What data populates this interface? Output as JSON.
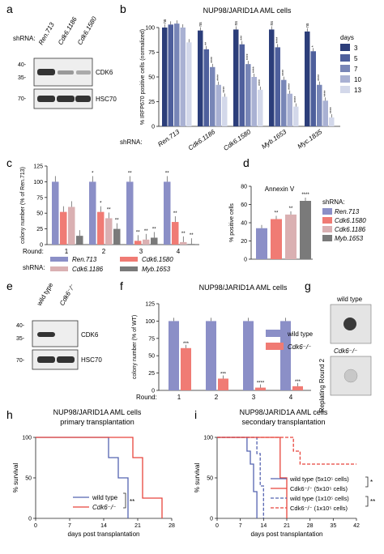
{
  "panels": {
    "a": {
      "letter": "a",
      "shrna_label": "shRNA:",
      "lanes": [
        "Ren.713",
        "Cdk6.1186",
        "Cdk6.1580"
      ],
      "mw_markers": [
        "40-",
        "35-",
        "70-"
      ],
      "bands": [
        "CDK6",
        "HSC70"
      ]
    },
    "b": {
      "letter": "b"
    },
    "c": {
      "letter": "c"
    },
    "d": {
      "letter": "d"
    },
    "e": {
      "letter": "e",
      "lanes": [
        "wild type",
        "Cdk6⁻/⁻"
      ],
      "mw_markers": [
        "40-",
        "35-",
        "70-"
      ],
      "bands": [
        "CDK6",
        "HSC70"
      ]
    },
    "f": {
      "letter": "f"
    },
    "g": {
      "letter": "g",
      "side_label": "Replating Round 2",
      "top_label": "wild type",
      "bottom_label": "Cdk6⁻/⁻"
    },
    "h": {
      "letter": "h"
    },
    "i": {
      "letter": "i"
    }
  },
  "chart_data": [
    {
      "id": "b",
      "type": "bar",
      "title": "NUP98/JARID1A AML cells",
      "ylabel": "% IRFP670 positive cells (normalized)",
      "xlabel_prefix": "shRNA:",
      "categories": [
        "Ren.713",
        "Cdk6.1186",
        "Cdk6.1580",
        "Myb.1653",
        "Myc.1835"
      ],
      "ylim": [
        0,
        100
      ],
      "yticks": [
        0,
        25,
        50,
        75,
        100
      ],
      "legend_title": "days",
      "series": [
        {
          "name": "3",
          "color": "#2c3e7a",
          "values": [
            100,
            97,
            98,
            98,
            96
          ]
        },
        {
          "name": "5",
          "color": "#4e5f9c",
          "values": [
            103,
            78,
            83,
            80,
            76
          ]
        },
        {
          "name": "7",
          "color": "#7886b7",
          "values": [
            104,
            60,
            63,
            47,
            42
          ]
        },
        {
          "name": "10",
          "color": "#a9b1d3",
          "values": [
            100,
            42,
            50,
            33,
            26
          ]
        },
        {
          "name": "13",
          "color": "#d3d8ea",
          "values": [
            85,
            30,
            37,
            20,
            9
          ]
        }
      ],
      "annotations": [
        [
          "ns",
          "ns",
          "ns",
          "ns",
          "ns"
        ],
        [
          "",
          "**",
          "***",
          "****",
          "*"
        ],
        [
          "",
          "****",
          "****",
          "****",
          "****"
        ],
        [
          "",
          "****",
          "****",
          "****",
          "****"
        ],
        [
          "",
          "****",
          "****",
          "****",
          "****"
        ]
      ]
    },
    {
      "id": "c",
      "type": "bar",
      "ylabel": "colony number (% of Ren.713)",
      "xlabel_prefix": "Round:",
      "categories": [
        "1",
        "2",
        "3",
        "4"
      ],
      "ylim": [
        0,
        125
      ],
      "yticks": [
        0,
        25,
        50,
        75,
        100,
        125
      ],
      "legend_prefix": "shRNA:",
      "series": [
        {
          "name": "Ren.713",
          "color": "#8b8fc7",
          "values": [
            100,
            100,
            100,
            100
          ]
        },
        {
          "name": "Cdk6.1580",
          "color": "#f07b74",
          "values": [
            52,
            52,
            6,
            36
          ]
        },
        {
          "name": "Cdk6.1186",
          "color": "#dab0b2",
          "values": [
            60,
            42,
            8,
            4
          ]
        },
        {
          "name": "Myb.1653",
          "color": "#7a7a7a",
          "values": [
            14,
            25,
            11,
            1
          ]
        }
      ],
      "annotations": [
        [
          "",
          "*",
          "**",
          "**"
        ],
        [
          "",
          "*",
          "**",
          "**"
        ],
        [
          "",
          "**",
          "**",
          "**"
        ],
        [
          "",
          "**",
          "**",
          "**"
        ]
      ]
    },
    {
      "id": "d",
      "type": "bar",
      "title": "Annexin V",
      "ylabel": "% positive cells",
      "ylim": [
        0,
        80
      ],
      "yticks": [
        0,
        20,
        40,
        60,
        80
      ],
      "legend_prefix": "shRNA:",
      "series": [
        {
          "name": "Ren.713",
          "color": "#8b8fc7",
          "value": 34
        },
        {
          "name": "Cdk6.1580",
          "color": "#f07b74",
          "value": 44
        },
        {
          "name": "Cdk6.1186",
          "color": "#dab0b2",
          "value": 49
        },
        {
          "name": "Myb.1653",
          "color": "#7a7a7a",
          "value": 64
        }
      ],
      "annotations": [
        "",
        "**",
        "**",
        "****"
      ]
    },
    {
      "id": "f",
      "type": "bar",
      "title": "NUP98/JARID1A AML cells",
      "ylabel": "colony number (% of WT)",
      "xlabel_prefix": "Round:",
      "categories": [
        "1",
        "2",
        "3",
        "4"
      ],
      "ylim": [
        0,
        125
      ],
      "yticks": [
        0,
        25,
        50,
        75,
        100,
        125
      ],
      "series": [
        {
          "name": "wild type",
          "color": "#8b8fc7",
          "values": [
            100,
            100,
            100,
            100
          ]
        },
        {
          "name": "Cdk6⁻/⁻",
          "color": "#f07b74",
          "values": [
            61,
            17,
            4,
            6
          ]
        }
      ],
      "annotations": [
        "***",
        "***",
        "****",
        "***"
      ]
    },
    {
      "id": "h",
      "type": "line",
      "title": "NUP98/JARID1A AML cells",
      "subtitle": "primary transplantation",
      "ylabel": "% survival",
      "xlabel": "days post transplantation",
      "xlim": [
        0,
        28
      ],
      "ylim": [
        0,
        100
      ],
      "xticks": [
        0,
        7,
        14,
        21,
        28
      ],
      "yticks": [
        0,
        50,
        100
      ],
      "significance": "**",
      "series": [
        {
          "name": "wild type",
          "color": "#5563b0",
          "dashed": false,
          "x": [
            0,
            15,
            15,
            17,
            17,
            19,
            19
          ],
          "y": [
            100,
            100,
            75,
            75,
            50,
            50,
            0
          ]
        },
        {
          "name": "Cdk6⁻/⁻",
          "color": "#e8453c",
          "dashed": false,
          "x": [
            0,
            20,
            20,
            22,
            22,
            26,
            26
          ],
          "y": [
            100,
            100,
            75,
            75,
            25,
            25,
            0
          ]
        }
      ]
    },
    {
      "id": "i",
      "type": "line",
      "title": "NUP98/JARID1A AML cells",
      "subtitle": "secondary transplantation",
      "ylabel": "% survival",
      "xlabel": "days post transplantation",
      "xlim": [
        0,
        42
      ],
      "ylim": [
        0,
        100
      ],
      "xticks": [
        0,
        7,
        14,
        21,
        28,
        35,
        42
      ],
      "yticks": [
        0,
        50,
        100
      ],
      "significance_solid": "*",
      "significance_dashed": "**",
      "series": [
        {
          "name": "wild type (5x10⁵ cells)",
          "color": "#5563b0",
          "dashed": false,
          "x": [
            0,
            9,
            9,
            10,
            10,
            11,
            11,
            12,
            12
          ],
          "y": [
            100,
            100,
            83,
            83,
            67,
            67,
            33,
            33,
            0
          ]
        },
        {
          "name": "Cdk6⁻/⁻ (5x10⁵ cells)",
          "color": "#e8453c",
          "dashed": false,
          "x": [
            0,
            19,
            19,
            21,
            21
          ],
          "y": [
            100,
            100,
            50,
            50,
            0
          ]
        },
        {
          "name": "wild type (1x10⁵ cells)",
          "color": "#5563b0",
          "dashed": true,
          "x": [
            0,
            12,
            12,
            13,
            13,
            14,
            14
          ],
          "y": [
            100,
            100,
            80,
            80,
            40,
            40,
            0
          ]
        },
        {
          "name": "Cdk6⁻/⁻ (1x10⁵ cells)",
          "color": "#e8453c",
          "dashed": true,
          "x": [
            0,
            23,
            23,
            25,
            25,
            42
          ],
          "y": [
            100,
            100,
            83,
            83,
            67,
            67
          ]
        }
      ]
    }
  ]
}
